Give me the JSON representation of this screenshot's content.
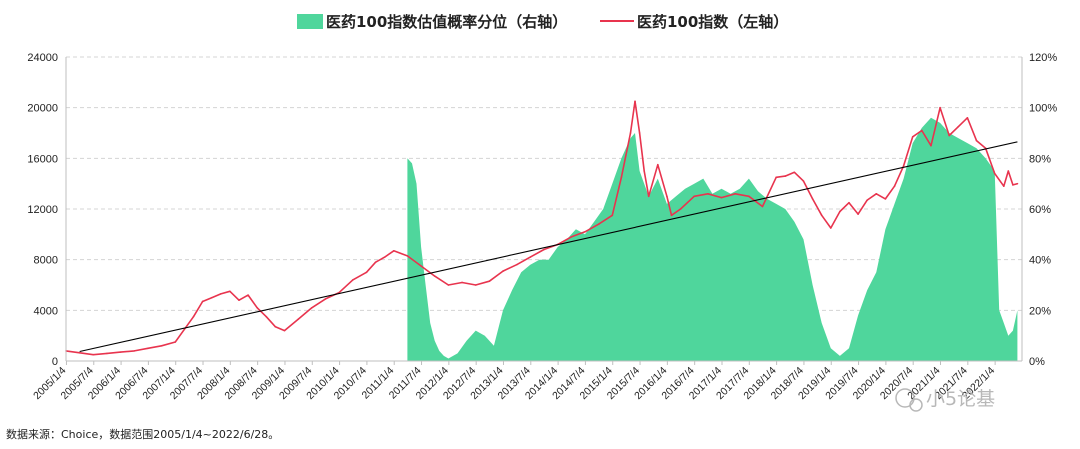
{
  "chart_data": {
    "type": "line+area",
    "series": [
      {
        "name": "医药100指数估值概率分位（右轴）",
        "kind": "area",
        "axis": "right",
        "color": "#4fd69c",
        "x": [
          "2011/4",
          "2011/5",
          "2011/6",
          "2011/7",
          "2011/8",
          "2011/9",
          "2011/10",
          "2011/11",
          "2011/12",
          "2012/1",
          "2012/3",
          "2012/5",
          "2012/7",
          "2012/9",
          "2012/11",
          "2013/1",
          "2013/3",
          "2013/5",
          "2013/7",
          "2013/9",
          "2013/11",
          "2014/1",
          "2014/3",
          "2014/5",
          "2014/7",
          "2014/9",
          "2014/11",
          "2015/1",
          "2015/3",
          "2015/5",
          "2015/6",
          "2015/7",
          "2015/9",
          "2015/11",
          "2016/1",
          "2016/3",
          "2016/5",
          "2016/7",
          "2016/9",
          "2016/11",
          "2017/1",
          "2017/3",
          "2017/5",
          "2017/7",
          "2017/9",
          "2017/11",
          "2018/1",
          "2018/3",
          "2018/5",
          "2018/7",
          "2018/9",
          "2018/11",
          "2019/1",
          "2019/3",
          "2019/5",
          "2019/7",
          "2019/9",
          "2019/11",
          "2020/1",
          "2020/3",
          "2020/5",
          "2020/7",
          "2020/9",
          "2020/11",
          "2021/1",
          "2021/3",
          "2021/5",
          "2021/7",
          "2021/9",
          "2021/11",
          "2022/1",
          "2022/2",
          "2022/3",
          "2022/4",
          "2022/5",
          "2022/6"
        ],
        "values": [
          80,
          78,
          70,
          45,
          30,
          15,
          8,
          4,
          2,
          1,
          3,
          8,
          12,
          10,
          6,
          20,
          28,
          35,
          38,
          40,
          40,
          45,
          48,
          52,
          50,
          55,
          60,
          70,
          80,
          88,
          90,
          75,
          65,
          72,
          62,
          65,
          68,
          70,
          72,
          66,
          68,
          66,
          68,
          72,
          67,
          64,
          62,
          60,
          55,
          48,
          30,
          15,
          5,
          2,
          5,
          18,
          28,
          35,
          52,
          62,
          72,
          86,
          92,
          96,
          94,
          90,
          88,
          86,
          84,
          80,
          75,
          20,
          15,
          10,
          12,
          20
        ]
      },
      {
        "name": "医药100指数（左轴）",
        "kind": "line",
        "axis": "left",
        "color": "#e8344e",
        "x": [
          "2005/1",
          "2005/4",
          "2005/7",
          "2005/10",
          "2006/1",
          "2006/4",
          "2006/7",
          "2006/10",
          "2007/1",
          "2007/3",
          "2007/5",
          "2007/7",
          "2007/9",
          "2007/11",
          "2008/1",
          "2008/3",
          "2008/5",
          "2008/7",
          "2008/9",
          "2008/11",
          "2009/1",
          "2009/4",
          "2009/7",
          "2009/10",
          "2010/1",
          "2010/4",
          "2010/7",
          "2010/9",
          "2010/11",
          "2011/1",
          "2011/4",
          "2011/7",
          "2011/10",
          "2012/1",
          "2012/4",
          "2012/7",
          "2012/10",
          "2013/1",
          "2013/4",
          "2013/7",
          "2013/10",
          "2014/1",
          "2014/4",
          "2014/7",
          "2014/10",
          "2015/1",
          "2015/3",
          "2015/5",
          "2015/6",
          "2015/7",
          "2015/8",
          "2015/9",
          "2015/11",
          "2016/1",
          "2016/2",
          "2016/4",
          "2016/7",
          "2016/10",
          "2017/1",
          "2017/4",
          "2017/7",
          "2017/10",
          "2018/1",
          "2018/3",
          "2018/5",
          "2018/7",
          "2018/9",
          "2018/11",
          "2019/1",
          "2019/3",
          "2019/5",
          "2019/7",
          "2019/9",
          "2019/11",
          "2020/1",
          "2020/3",
          "2020/5",
          "2020/7",
          "2020/9",
          "2020/11",
          "2021/1",
          "2021/3",
          "2021/5",
          "2021/7",
          "2021/9",
          "2021/11",
          "2022/1",
          "2022/3",
          "2022/4",
          "2022/5",
          "2022/6"
        ],
        "values": [
          800,
          650,
          500,
          600,
          700,
          800,
          1000,
          1200,
          1500,
          2500,
          3500,
          4700,
          5000,
          5300,
          5500,
          4800,
          5200,
          4200,
          3500,
          2700,
          2400,
          3300,
          4200,
          4900,
          5400,
          6400,
          7000,
          7800,
          8200,
          8700,
          8300,
          7500,
          6700,
          6000,
          6200,
          6000,
          6300,
          7100,
          7600,
          8200,
          8800,
          9200,
          9800,
          10200,
          10800,
          11500,
          14500,
          18000,
          20500,
          18000,
          15000,
          13000,
          15500,
          13000,
          11500,
          12000,
          13000,
          13200,
          12900,
          13200,
          13000,
          12200,
          14500,
          14600,
          14900,
          14200,
          12800,
          11500,
          10500,
          11800,
          12500,
          11600,
          12700,
          13200,
          12800,
          13800,
          15400,
          17700,
          18200,
          17000,
          20000,
          17800,
          18500,
          19200,
          17400,
          16800,
          14800,
          13800,
          15000,
          13900,
          14000
        ]
      },
      {
        "name": "",
        "kind": "trend",
        "axis": "left",
        "color": "#000000",
        "x": [
          "2005/4",
          "2022/6"
        ],
        "values": [
          750,
          17300
        ]
      }
    ],
    "x_ticks": [
      "2005/1/4",
      "2005/7/4",
      "2006/1/4",
      "2006/7/4",
      "2007/1/4",
      "2007/7/4",
      "2008/1/4",
      "2008/7/4",
      "2009/1/4",
      "2009/7/4",
      "2010/1/4",
      "2010/7/4",
      "2011/1/4",
      "2011/7/4",
      "2012/1/4",
      "2012/7/4",
      "2013/1/4",
      "2013/7/4",
      "2014/1/4",
      "2014/7/4",
      "2015/1/4",
      "2015/7/4",
      "2016/1/4",
      "2016/7/4",
      "2017/1/4",
      "2017/7/4",
      "2018/1/4",
      "2018/7/4",
      "2019/1/4",
      "2019/7/4",
      "2020/1/4",
      "2020/7/4",
      "2021/1/4",
      "2021/7/4",
      "2022/1/4"
    ],
    "y_left": {
      "min": 0,
      "max": 24000,
      "ticks": [
        "0",
        "4000",
        "8000",
        "12000",
        "16000",
        "20000",
        "24000"
      ]
    },
    "y_right": {
      "min": 0,
      "max": 120,
      "ticks": [
        "0%",
        "20%",
        "40%",
        "60%",
        "80%",
        "100%",
        "120%"
      ]
    },
    "x_range": [
      "2005/1",
      "2022/7"
    ],
    "grid": true,
    "legend_position": "top"
  },
  "footer": {
    "source": "数据来源：Choice，数据范围2005/1/4~2022/6/28。"
  },
  "watermark": {
    "text": "小5论基"
  }
}
